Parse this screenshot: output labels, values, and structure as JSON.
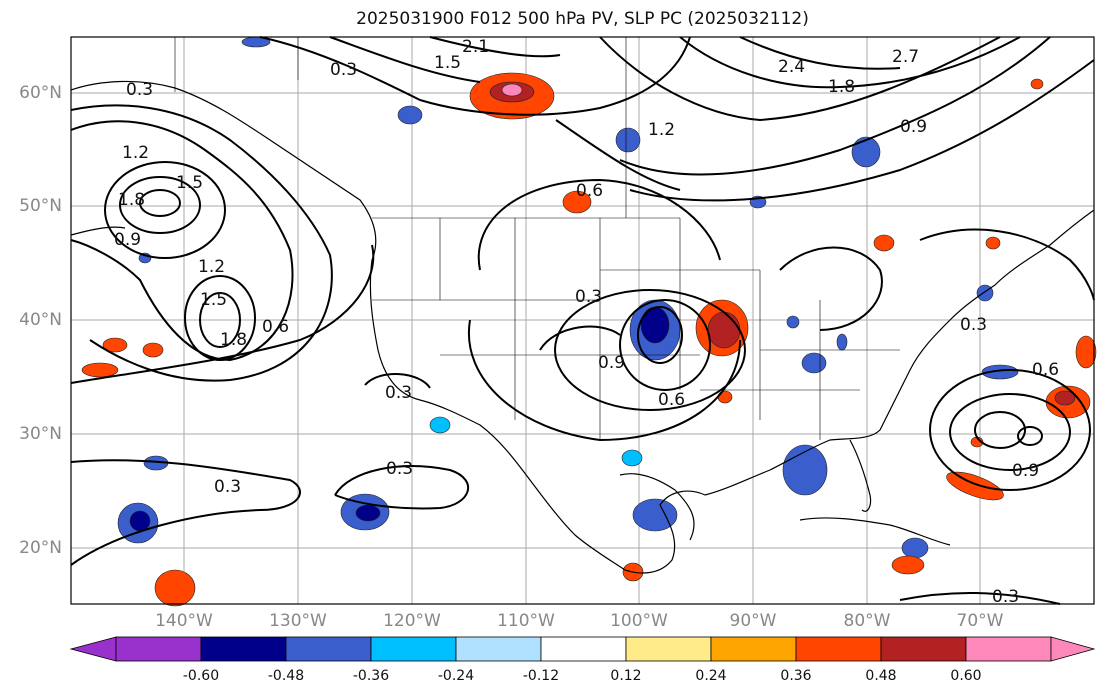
{
  "title": "2025031900 F012 500 hPa PV, SLP PC (2025032112)",
  "lat_labels": [
    "60°N",
    "50°N",
    "40°N",
    "30°N",
    "20°N"
  ],
  "lon_labels": [
    "140°W",
    "130°W",
    "120°W",
    "110°W",
    "100°W",
    "90°W",
    "80°W",
    "70°W"
  ],
  "colorbar": {
    "ticks": [
      "-0.60",
      "-0.48",
      "-0.36",
      "-0.24",
      "-0.12",
      "0.12",
      "0.24",
      "0.36",
      "0.48",
      "0.60"
    ],
    "colors": [
      "#9932cc",
      "#00008b",
      "#3a5fcd",
      "#00bfff",
      "#b0e0ff",
      "#ffffff",
      "#ffeb88",
      "#ffa500",
      "#ff4500",
      "#b22222",
      "#ff88bb"
    ]
  },
  "contour_labels": [
    "2.1",
    "0.3",
    "1.8",
    "1.5",
    "1.2",
    "0.9",
    "0.6",
    "2.4",
    "2.7",
    "1.2",
    "1.5",
    "0.3",
    "1.8",
    "1.2",
    "0.9",
    "1.5",
    "1.8",
    "0.6",
    "0.3",
    "0.9",
    "0.6",
    "0.3",
    "0.3",
    "0.3",
    "0.3",
    "0.6",
    "0.9",
    "0.3"
  ]
}
